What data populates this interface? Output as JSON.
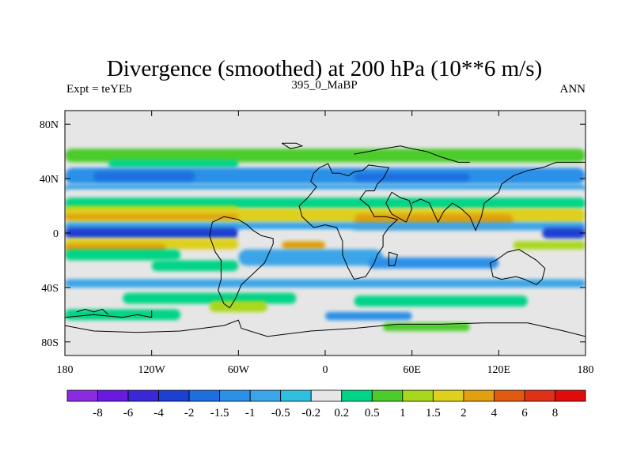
{
  "chart_data": {
    "type": "heatmap",
    "title": "Divergence (smoothed) at 200 hPa (10**6 m/s)",
    "subtitle_left": "Expt = teYEb",
    "subtitle_center": "395_0_MaBP",
    "subtitle_right": "ANN",
    "x_range": [
      -180,
      180
    ],
    "y_range": [
      -90,
      90
    ],
    "x_ticks": [
      {
        "value": -180,
        "label": "180"
      },
      {
        "value": -120,
        "label": "120W"
      },
      {
        "value": -60,
        "label": "60W"
      },
      {
        "value": 0,
        "label": "0"
      },
      {
        "value": 60,
        "label": "60E"
      },
      {
        "value": 120,
        "label": "120E"
      },
      {
        "value": 180,
        "label": "180"
      }
    ],
    "y_ticks": [
      {
        "value": 80,
        "label": "80N"
      },
      {
        "value": 40,
        "label": "40N"
      },
      {
        "value": 0,
        "label": "0"
      },
      {
        "value": -40,
        "label": "40S"
      },
      {
        "value": -80,
        "label": "80S"
      }
    ],
    "levels": [
      "-8",
      "-6",
      "-4",
      "-2",
      "-1.5",
      "-1",
      "-0.5",
      "-0.2",
      "0.2",
      "0.5",
      "1",
      "1.5",
      "2",
      "4",
      "6",
      "8"
    ],
    "colors": [
      "#8a2be2",
      "#6a1ae0",
      "#3a28d8",
      "#1b3fd1",
      "#1d6fe0",
      "#2a90e8",
      "#3aa5e8",
      "#2fbfe0",
      "#e6e6e6",
      "#00d486",
      "#4ccc2a",
      "#a8d81c",
      "#dfd01c",
      "#e0a010",
      "#e05a10",
      "#e03018",
      "#e00c0c"
    ],
    "bands": [
      {
        "lat": [
          62,
          52
        ],
        "lon": [
          -180,
          180
        ],
        "level": 10
      },
      {
        "lat": [
          54,
          48
        ],
        "lon": [
          -150,
          -60
        ],
        "level": 9
      },
      {
        "lat": [
          48,
          36
        ],
        "lon": [
          -180,
          180
        ],
        "level": 5
      },
      {
        "lat": [
          45,
          38
        ],
        "lon": [
          -160,
          -90
        ],
        "level": 4
      },
      {
        "lat": [
          44,
          38
        ],
        "lon": [
          20,
          100
        ],
        "level": 4
      },
      {
        "lat": [
          36,
          30
        ],
        "lon": [
          -180,
          180
        ],
        "level": 6
      },
      {
        "lat": [
          32,
          26
        ],
        "lon": [
          -180,
          180
        ],
        "level": 8
      },
      {
        "lat": [
          26,
          18
        ],
        "lon": [
          -180,
          180
        ],
        "level": 9
      },
      {
        "lat": [
          20,
          14
        ],
        "lon": [
          -180,
          -60
        ],
        "level": 11
      },
      {
        "lat": [
          18,
          8
        ],
        "lon": [
          -180,
          180
        ],
        "level": 12
      },
      {
        "lat": [
          14,
          10
        ],
        "lon": [
          -180,
          -60
        ],
        "level": 13
      },
      {
        "lat": [
          14,
          4
        ],
        "lon": [
          20,
          130
        ],
        "level": 13
      },
      {
        "lat": [
          8,
          2
        ],
        "lon": [
          -180,
          180
        ],
        "level": 6
      },
      {
        "lat": [
          4,
          -4
        ],
        "lon": [
          -180,
          -60
        ],
        "level": 3
      },
      {
        "lat": [
          4,
          -4
        ],
        "lon": [
          150,
          180
        ],
        "level": 3
      },
      {
        "lat": [
          2,
          -4
        ],
        "lon": [
          -60,
          20
        ],
        "level": 8
      },
      {
        "lat": [
          -4,
          -12
        ],
        "lon": [
          -180,
          -60
        ],
        "level": 12
      },
      {
        "lat": [
          -8,
          -14
        ],
        "lon": [
          -180,
          -110
        ],
        "level": 13
      },
      {
        "lat": [
          -6,
          -12
        ],
        "lon": [
          -30,
          0
        ],
        "level": 13
      },
      {
        "lat": [
          -6,
          -12
        ],
        "lon": [
          130,
          180
        ],
        "level": 11
      },
      {
        "lat": [
          -12,
          -20
        ],
        "lon": [
          -180,
          -100
        ],
        "level": 9
      },
      {
        "lat": [
          -12,
          -24
        ],
        "lon": [
          -60,
          40
        ],
        "level": 6
      },
      {
        "lat": [
          -18,
          -26
        ],
        "lon": [
          30,
          120
        ],
        "level": 5
      },
      {
        "lat": [
          -20,
          -28
        ],
        "lon": [
          -120,
          -60
        ],
        "level": 9
      },
      {
        "lat": [
          -34,
          -40
        ],
        "lon": [
          -180,
          180
        ],
        "level": 6
      },
      {
        "lat": [
          -44,
          -52
        ],
        "lon": [
          -140,
          -20
        ],
        "level": 9
      },
      {
        "lat": [
          -46,
          -54
        ],
        "lon": [
          20,
          140
        ],
        "level": 9
      },
      {
        "lat": [
          -50,
          -58
        ],
        "lon": [
          -80,
          -40
        ],
        "level": 11
      },
      {
        "lat": [
          -56,
          -64
        ],
        "lon": [
          -180,
          -100
        ],
        "level": 9
      },
      {
        "lat": [
          -58,
          -64
        ],
        "lon": [
          0,
          60
        ],
        "level": 5
      },
      {
        "lat": [
          -66,
          -72
        ],
        "lon": [
          40,
          100
        ],
        "level": 10
      }
    ],
    "outline_paths": [
      [
        [
          -4,
          48
        ],
        [
          0,
          50
        ],
        [
          2,
          51
        ],
        [
          5,
          44
        ],
        [
          10,
          44
        ],
        [
          16,
          42
        ],
        [
          20,
          45
        ],
        [
          26,
          46
        ],
        [
          30,
          50
        ],
        [
          44,
          48
        ],
        [
          40,
          40
        ],
        [
          36,
          36
        ],
        [
          34,
          31
        ],
        [
          28,
          31
        ],
        [
          24,
          25
        ],
        [
          30,
          20
        ],
        [
          34,
          12
        ],
        [
          42,
          12
        ],
        [
          50,
          10
        ],
        [
          44,
          4
        ],
        [
          40,
          -2
        ],
        [
          40,
          -10
        ],
        [
          36,
          -16
        ],
        [
          34,
          -22
        ],
        [
          28,
          -32
        ],
        [
          20,
          -34
        ],
        [
          16,
          -26
        ],
        [
          12,
          -16
        ],
        [
          12,
          -6
        ],
        [
          8,
          4
        ],
        [
          0,
          6
        ],
        [
          -8,
          4
        ],
        [
          -16,
          12
        ],
        [
          -18,
          20
        ],
        [
          -12,
          26
        ],
        [
          -6,
          34
        ],
        [
          -10,
          38
        ],
        [
          -8,
          44
        ],
        [
          -4,
          48
        ]
      ],
      [
        [
          -70,
          12
        ],
        [
          -78,
          8
        ],
        [
          -80,
          -2
        ],
        [
          -76,
          -14
        ],
        [
          -72,
          -20
        ],
        [
          -72,
          -34
        ],
        [
          -74,
          -42
        ],
        [
          -70,
          -52
        ],
        [
          -66,
          -55
        ],
        [
          -62,
          -48
        ],
        [
          -58,
          -38
        ],
        [
          -50,
          -30
        ],
        [
          -42,
          -22
        ],
        [
          -36,
          -8
        ],
        [
          -36,
          -4
        ],
        [
          -44,
          -2
        ],
        [
          -50,
          2
        ],
        [
          -54,
          6
        ],
        [
          -60,
          10
        ],
        [
          -70,
          12
        ]
      ],
      [
        [
          60,
          22
        ],
        [
          66,
          25
        ],
        [
          72,
          22
        ],
        [
          78,
          8
        ],
        [
          82,
          16
        ],
        [
          88,
          22
        ],
        [
          94,
          18
        ],
        [
          100,
          12
        ],
        [
          104,
          2
        ],
        [
          108,
          12
        ],
        [
          110,
          22
        ],
        [
          120,
          30
        ],
        [
          122,
          36
        ],
        [
          130,
          42
        ],
        [
          140,
          46
        ],
        [
          150,
          48
        ],
        [
          160,
          52
        ],
        [
          180,
          52
        ]
      ],
      [
        [
          114,
          -22
        ],
        [
          118,
          -20
        ],
        [
          126,
          -14
        ],
        [
          134,
          -12
        ],
        [
          140,
          -16
        ],
        [
          146,
          -20
        ],
        [
          152,
          -26
        ],
        [
          150,
          -34
        ],
        [
          146,
          -38
        ],
        [
          138,
          -34
        ],
        [
          132,
          -32
        ],
        [
          122,
          -34
        ],
        [
          116,
          -32
        ],
        [
          114,
          -22
        ]
      ],
      [
        [
          -180,
          -68
        ],
        [
          -160,
          -72
        ],
        [
          -130,
          -73
        ],
        [
          -100,
          -72
        ],
        [
          -70,
          -68
        ],
        [
          -60,
          -64
        ],
        [
          -58,
          -70
        ],
        [
          -40,
          -76
        ],
        [
          -10,
          -72
        ],
        [
          20,
          -70
        ],
        [
          50,
          -67
        ],
        [
          80,
          -67
        ],
        [
          110,
          -66
        ],
        [
          140,
          -66
        ],
        [
          165,
          -72
        ],
        [
          180,
          -76
        ]
      ],
      [
        [
          -180,
          -62
        ],
        [
          -160,
          -60
        ],
        [
          -140,
          -62
        ],
        [
          -130,
          -60
        ],
        [
          -120,
          -62
        ],
        [
          -120,
          -57
        ]
      ],
      [
        [
          -172,
          -58
        ],
        [
          -166,
          -56
        ],
        [
          -160,
          -58
        ],
        [
          -154,
          -56
        ],
        [
          -150,
          -60
        ]
      ],
      [
        [
          56,
          8
        ],
        [
          60,
          18
        ],
        [
          58,
          24
        ],
        [
          52,
          26
        ],
        [
          46,
          30
        ],
        [
          42,
          22
        ],
        [
          46,
          14
        ],
        [
          56,
          8
        ]
      ],
      [
        [
          44,
          -14
        ],
        [
          50,
          -16
        ],
        [
          48,
          -24
        ],
        [
          44,
          -24
        ],
        [
          44,
          -14
        ]
      ],
      [
        [
          -30,
          66
        ],
        [
          -20,
          66
        ],
        [
          -16,
          64
        ],
        [
          -24,
          62
        ],
        [
          -30,
          66
        ]
      ],
      [
        [
          20,
          58
        ],
        [
          30,
          60
        ],
        [
          40,
          62
        ],
        [
          52,
          64
        ],
        [
          60,
          62
        ],
        [
          70,
          60
        ],
        [
          80,
          56
        ],
        [
          92,
          52
        ],
        [
          100,
          52
        ]
      ]
    ]
  }
}
